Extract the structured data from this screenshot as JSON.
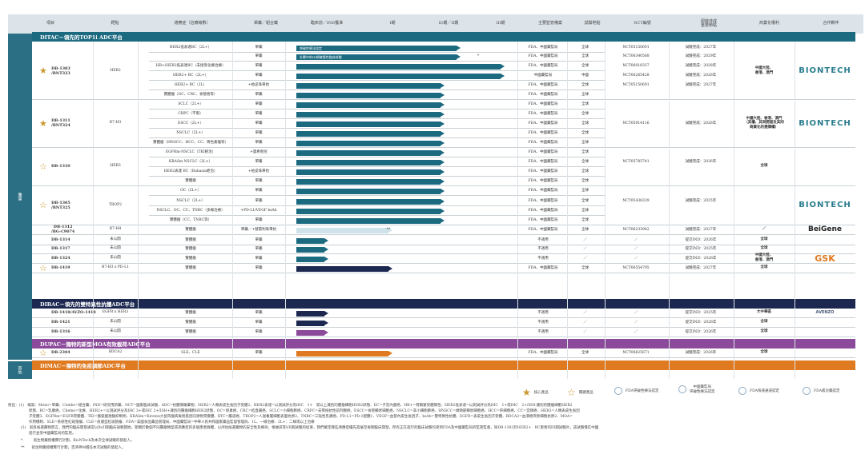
{
  "header": [
    "項目",
    "靶點",
    "適應症（治療線數）",
    "單藥／組合藥",
    "臨床前／IND獲准",
    "I期",
    "II/期／II期",
    "III期",
    "主要監管備案",
    "試驗地點",
    "NCT編號",
    "即將達成\n重要節點",
    "商業化權利",
    "合作夥伴"
  ],
  "sidebar": {
    "main": "腫瘤",
    "other": "其他"
  },
  "platforms": {
    "ditac": "DITAC－領先的TOP1i ADC平台",
    "dibac": "DIBAC－領先的雙特異性抗體ADC平台",
    "dupac": "DUPAC－獨特的新型MOA有效載荷ADC平台",
    "dimac": "DIMAC－獨特的免疫調節ADC平台"
  },
  "rows": [
    {
      "ind": "HER2低表達BC（2L+）",
      "mono": "單藥",
      "reg": "FDA、中國藥監局",
      "site": "全球",
      "nct": "NCT05150691",
      "ms": "試驗完成：2027年",
      "bar": "突破性療法認定",
      "stage": 3
    },
    {
      "ind": "",
      "mono": "單藥",
      "reg": "FDA、中國藥監局",
      "site": "全球",
      "nct": "NCT06340568",
      "ms": "試驗完成：2029年",
      "bar": "計劃中的III期確證性臨床試驗",
      "stage": 3
    },
    {
      "ind": "HR+/HER2低表達BC（未接受化療治療）",
      "mono": "單藥",
      "reg": "FDA、中國藥監局",
      "site": "全球",
      "nct": "NCT06018337",
      "ms": "試驗完成：2028年",
      "bar": "",
      "stage": 4
    },
    {
      "ind": "HER2+ BC（2L+）",
      "mono": "單藥",
      "reg": "中國藥監局",
      "site": "中國",
      "nct": "NCT06265428",
      "ms": "試驗完成：2026年",
      "bar": "",
      "stage": 4
    },
    {
      "ind": "HER2+ BC（1L）",
      "mono": "+帕妥珠單抗",
      "reg": "FDA、中國藥監局",
      "site": "全球",
      "nct": "NCT05150691",
      "ms": "試驗完成：2027年",
      "bar": "",
      "stage": 2
    },
    {
      "ind": "實體瘤（GC、CRC、食管癌等）",
      "mono": "單藥",
      "reg": "FDA、中國藥監局",
      "site": "全球",
      "nct": "",
      "ms": "",
      "bar": "",
      "stage": 2
    },
    {
      "ind": "SCLC（2L+）",
      "mono": "單藥",
      "reg": "FDA、中國藥監局",
      "site": "全球",
      "nct": "",
      "ms": "",
      "bar": "",
      "stage": 2
    },
    {
      "ind": "CRPC（不限）",
      "mono": "單藥",
      "reg": "FDA、中國藥監局",
      "site": "全球",
      "nct": "",
      "ms": "",
      "bar": "",
      "stage": 2
    },
    {
      "ind": "ESCC（2L+）",
      "mono": "單藥",
      "reg": "FDA、中國藥監局",
      "site": "全球",
      "nct": "NCT05914116",
      "ms": "試驗完成：2026年",
      "bar": "",
      "stage": 2
    },
    {
      "ind": "NSCLC（2L+）",
      "mono": "單藥",
      "reg": "FDA、中國藥監局",
      "site": "全球",
      "nct": "",
      "ms": "",
      "bar": "",
      "stage": 2
    },
    {
      "ind": "實體瘤（HNSCC、HCC、CC、胃色素瘤等）",
      "mono": "單藥",
      "reg": "FDA、中國藥監局",
      "site": "全球",
      "nct": "",
      "ms": "",
      "bar": "",
      "stage": 2
    },
    {
      "ind": "EGFRm-NSCLC（TKI經治）",
      "mono": "+奧希替尼",
      "reg": "FDA、中國藥監局",
      "site": "全球",
      "nct": "",
      "ms": "",
      "bar": "",
      "stage": 2
    },
    {
      "ind": "KRASm NSCLC（2L+）",
      "mono": "單藥",
      "reg": "FDA、中國藥監局",
      "site": "全球",
      "nct": "NCT05785741",
      "ms": "試驗完成：2026年",
      "bar": "",
      "stage": 2
    },
    {
      "ind": "HER2表達 BC（Bahasia經治）",
      "mono": "+帕妥珠單抗",
      "reg": "FDA、中國藥監局",
      "site": "全球",
      "nct": "",
      "ms": "",
      "bar": "",
      "stage": 2
    },
    {
      "ind": "實體瘤",
      "mono": "單藥",
      "reg": "FDA、中國藥監局",
      "site": "全球",
      "nct": "",
      "ms": "",
      "bar": "",
      "stage": 2
    },
    {
      "ind": "OC（2L+）",
      "mono": "單藥",
      "reg": "FDA、中國藥監局",
      "site": "全球",
      "nct": "",
      "ms": "",
      "bar": "",
      "stage": 2
    },
    {
      "ind": "NSCLC（2L+）",
      "mono": "單藥",
      "reg": "FDA、中國藥監局",
      "site": "全球",
      "nct": "NCT05438329",
      "ms": "試驗完成：2025年",
      "bar": "",
      "stage": 2
    },
    {
      "ind": "NSCLC、OC、CC、TNBC（多線治療）",
      "mono": "+PD-L1/VEGF bsAb",
      "reg": "FDA、中國藥監局",
      "site": "全球",
      "nct": "",
      "ms": "",
      "bar": "",
      "stage": 2
    },
    {
      "ind": "實體瘤（CC、TNBC等）",
      "mono": "單藥",
      "reg": "FDA、中國藥監局",
      "site": "全球",
      "nct": "",
      "ms": "",
      "bar": "",
      "stage": 2
    },
    {
      "ind": "實體瘤",
      "mono": "單藥／+替雷利珠單抗",
      "reg": "FDA、中國藥監局",
      "site": "全球",
      "nct": "NCT06233942",
      "ms": "試驗完成：2027年",
      "bar": "",
      "stage": 1
    },
    {
      "ind": "實體瘤",
      "mono": "單藥",
      "reg": "不適用",
      "site": "／",
      "nct": "／",
      "ms": "提交IND：2026年",
      "bar": "",
      "stage": 0
    },
    {
      "ind": "實體瘤",
      "mono": "單藥",
      "reg": "不適用",
      "site": "／",
      "nct": "／",
      "ms": "提交IND：2025年",
      "bar": "",
      "stage": 0
    },
    {
      "ind": "實體瘤",
      "mono": "單藥",
      "reg": "不適用",
      "site": "／",
      "nct": "／",
      "ms": "提交IND：2026年",
      "bar": "",
      "stage": 0
    },
    {
      "ind": "實體瘤",
      "mono": "單藥",
      "reg": "FDA、中國藥監局",
      "site": "全球",
      "nct": "NCT06554795",
      "ms": "試驗完成：2027年",
      "bar": "",
      "stage": 1
    },
    {
      "ind": "實體瘤",
      "mono": "單藥",
      "reg": "不適用",
      "site": "／",
      "nct": "／",
      "ms": "提交IND：2025年",
      "bar": "",
      "stage": 0
    },
    {
      "ind": "實體瘤",
      "mono": "單藥",
      "reg": "不適用",
      "site": "／",
      "nct": "／",
      "ms": "提交IND：2026年",
      "bar": "",
      "stage": 0
    },
    {
      "ind": "實體瘤",
      "mono": "單藥",
      "reg": "不適用",
      "site": "／",
      "nct": "／",
      "ms": "提交IND：2026年",
      "bar": "",
      "stage": 0
    },
    {
      "ind": "SLE、CLE",
      "mono": "單藥",
      "reg": "FDA、中國藥監局",
      "site": "全球",
      "nct": "NCT06625671",
      "ms": "試驗完成：2026年",
      "bar": "",
      "stage": 1
    }
  ],
  "drugs": [
    {
      "name": "DB-1303\n/BNT323",
      "target": "HER2",
      "rights": "中國大陸、\n香港、澳門",
      "partner": "BIONTECH",
      "star": "solid"
    },
    {
      "name": "DB-1311\n/BNT324",
      "target": "B7-H3",
      "rights": "中國大陸、香港、澳門\n（其權、其同開發及其同\n商業化的選擇權）",
      "partner": "BIONTECH",
      "star": "solid"
    },
    {
      "name": "DB-1310",
      "target": "HER3",
      "rights": "全球",
      "partner": "",
      "star": "outline"
    },
    {
      "name": "DB-1305\n/BNT325",
      "target": "TROP2",
      "rights": "",
      "partner": "BIONTECH",
      "star": "outline"
    },
    {
      "name": "DB-1312\n/BG-C9074",
      "target": "B7-H4",
      "rights": "／",
      "partner": "BeiGene",
      "star": ""
    },
    {
      "name": "DB-1314",
      "target": "未公開",
      "rights": "全球",
      "partner": "",
      "star": ""
    },
    {
      "name": "DB-1317",
      "target": "未公開",
      "rights": "全球",
      "partner": "",
      "star": ""
    },
    {
      "name": "DB-1324",
      "target": "未公開",
      "rights": "中國大陸、\n香港、澳門",
      "partner": "GSK",
      "star": ""
    },
    {
      "name": "DB-1419",
      "target": "B7-H3 x PD-L1",
      "rights": "全球",
      "partner": "",
      "star": "outline"
    },
    {
      "name": "DB-1418/AVZO-1418",
      "target": "EGFR x HER3",
      "rights": "大中華區",
      "partner": "AVENZO",
      "star": ""
    },
    {
      "name": "DB-1421",
      "target": "未公開",
      "rights": "全球",
      "partner": "",
      "star": ""
    },
    {
      "name": "DB-1316",
      "target": "未公開",
      "rights": "全球",
      "partner": "",
      "star": ""
    },
    {
      "name": "DB-2304",
      "target": "BDCA2",
      "rights": "全球",
      "partner": "",
      "star": "outline"
    }
  ],
  "bar_note": "**",
  "bar_note_star": "*",
  "legend": [
    "核心產品",
    "關鍵產品",
    "FDA突破性療法認定",
    "中國藥監局\n突破性療法認定",
    "FDA快速通道認定",
    "FDA孤兒藥認定"
  ],
  "footnotes": [
    "附註：(1)　縮寫：Mono=單藥、Combo=組合藥、IND=研究用新藥、NCT=國家臨床試驗、ADC=抗體偶聯藥物、HER2=人類表皮生長因子受體2、HER2表達=以測試評分為IHC　1+　或以上識別的腫瘤細胞HER2狀態、EC=子宮內膜癌、HR+=荷爾蒙受體陽性、HER2低表達=以測試評分為IHC　1+或IHC　2+/ISH-識別的腫瘤細胞HER2",
    "狀態、BC=乳腺癌、Chemo=化療、HER2+=以測試評分為IHC 3+或IHC 2+/ISH+識別的腫瘤細胞HER2狀態、OC=卵巢癌、CRC=結直腸癌、SCLC=小細胞肺癌、CRPC=去勢抵抗性前列腺癌、ESCC=食管鱗狀細胞癌、NSCLC=非小細胞肺癌、HNSCC=頭頸部鱗狀細胞癌、HCC=肝細胞癌、CC=宮頸癌、HER3=人類表皮生長因",
    "子受體3、EGFRm=EGFR突變體、TKI=酪氨酸激酶抑制劑、KRASm=Kirsten大鼠肉瘤病毒癌基因同源物突變體、BTC=膽道癌、TROP2=人滋養層細胞表面抗原2、TNBC=三陰性乳腺癌、PD-L1=PD-1配體1、VEGF=血管內皮生長因子、bsAb=雙特異性抗體、EGFR=表皮生長因子受體、BDCA2=血液樹突狀細胞抗原2、MOA=",
    "作用機制、SLE=系統性紅斑狼瘡、CLE=皮膚型紅斑狼瘡、FDA=美國食品藥品管理局、中國藥監局=中華人民共和國家藥品監督管理局、1L、一線治療、2L+：二線或以上治療",
    "(2)　就各候選藥物而言，我們的臨床開發通常以Ib/II期臨床試驗開始，期間於數個不同腫瘤類型或適應症的多個患者群體，以評估候選藥物的安全性及療效，根據該等I/II期試驗的結果，我們確定哪些適應症優先進展至後期臨床開發，所有正在進行的臨床試驗均受到FDA及中國藥監局的監管監督，除DB-1303於HER2+　BC患者的III期試驗外，該試驗僅在中國",
    "進行並受中國藥監局的監管。",
    "*　　　就生物藥授權實行計劃，BioNTech為本次全球試驗的發起人。",
    "**　　就生物藥授權實行計劃，百濟神州擔任本次試驗的發起人。"
  ],
  "colors": {
    "ditac": "#1b6a80",
    "dibac": "#1c2850",
    "dupac": "#8b4a9a",
    "dimac": "#e07a20",
    "star": "#c9972c",
    "header_bg": "#dce4ea"
  }
}
